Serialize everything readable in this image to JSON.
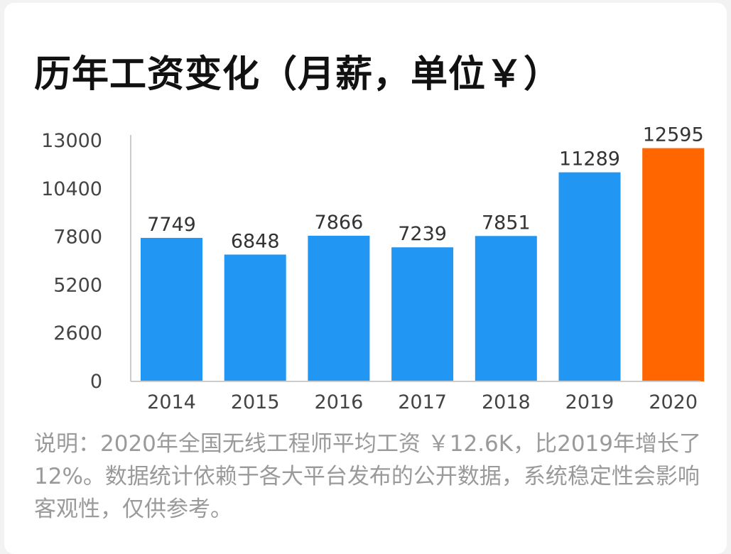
{
  "title": "历年工资变化（月薪，单位￥）",
  "note": "说明：2020年全国无线工程师平均工资 ￥12.6K，比2019年增长了12%。数据统计依赖于各大平台发布的公开数据，系统稳定性会影响客观性，仅供参考。",
  "colors": {
    "bar": "#2196f3",
    "highlight": "#ff6600",
    "axis": "#cccccc"
  },
  "chart_data": {
    "type": "bar",
    "categories": [
      "2014",
      "2015",
      "2016",
      "2017",
      "2018",
      "2019",
      "2020"
    ],
    "values": [
      7749,
      6848,
      7866,
      7239,
      7851,
      11289,
      12595
    ],
    "value_labels": [
      "7749",
      "6848",
      "7866",
      "7239",
      "7851",
      "11289",
      "12595"
    ],
    "highlight_index": 6,
    "ylim": [
      0,
      13000
    ],
    "yticks": [
      0,
      2600,
      5200,
      7800,
      10400,
      13000
    ],
    "ytick_labels": [
      "0",
      "2600",
      "5200",
      "7800",
      "10400",
      "13000"
    ],
    "grid": false,
    "legend": "none"
  }
}
